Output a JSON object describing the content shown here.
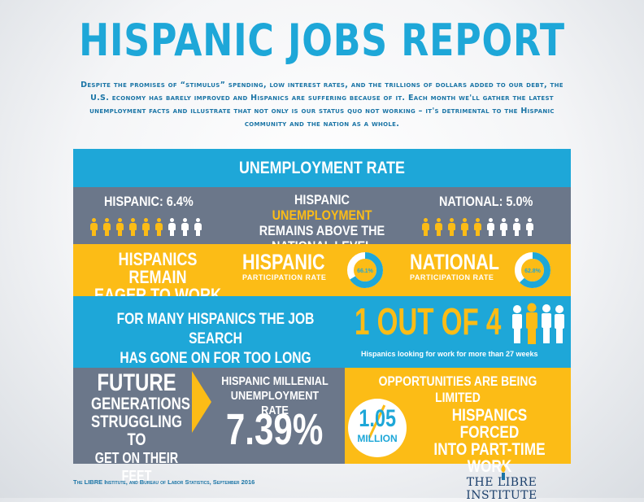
{
  "title": "HISPANIC JOBS REPORT",
  "intro": "Despite the promises of “stimulus” spending, low interest rates, and the trillions of dollars added to our debt, the U.S. economy has barely improved and Hispanics are suffering because of it. Each month we'll gather the latest unemployment facts and illustrate that not only is our status quo not working – it's detrimental to the Hispanic community and the nation as a whole.",
  "unemployment": {
    "header": "UNEMPLOYMENT RATE",
    "hispanic_label": "HISPANIC: 6.4%",
    "national_label": "NATIONAL: 5.0%",
    "headline_part1": "HISPANIC ",
    "headline_highlight": "UNEMPLOYMENT",
    "headline_part2": "REMAINS ABOVE THE",
    "headline_part3": "NATIONAL LEVEL",
    "hispanic_icons_gold": 6,
    "national_icons_gold": 5,
    "icons_total": 9
  },
  "participation": {
    "left_line1": "HISPANICS REMAIN",
    "left_line2": "EAGER TO WORK",
    "hispanic_title": "HISPANIC",
    "hispanic_sub": "PARTICIPATION RATE",
    "hispanic_value": "66.1%",
    "hispanic_fraction": 0.661,
    "national_title": "NATIONAL",
    "national_sub": "PARTICIPATION RATE",
    "national_value": "62.8%",
    "national_fraction": 0.628
  },
  "job_search": {
    "line1": "FOR MANY HISPANICS THE JOB SEARCH",
    "line2": "HAS GONE ON FOR TOO LONG",
    "big": "1 OUT OF 4",
    "caption": "Hispanics looking for work for more than 27 weeks"
  },
  "future": {
    "line1": "FUTURE",
    "line2": "GENERATIONS",
    "line3": "STRUGGLING TO",
    "line4": "GET ON THEIR FEET",
    "millenial_line1": "HISPANIC MILLENIAL",
    "millenial_line2": "UNEMPLOYMENT RATE",
    "rate": "7.39%"
  },
  "opportunities": {
    "header": "OPPORTUNITIES ARE BEING LIMITED",
    "number": "1.05",
    "unit": "MILLION",
    "forced_line1": "HISPANICS FORCED",
    "forced_line2": "INTO PART-TIME WORK"
  },
  "footer": {
    "source": "The LIBRE Institute, and Bureau of Labor Statistics, September 2016",
    "logo": "THE LIBRE INSTITUTE"
  },
  "colors": {
    "blue": "#1ea7d8",
    "gold": "#fcbc16",
    "slate": "#6b778a",
    "white": "#ffffff"
  }
}
